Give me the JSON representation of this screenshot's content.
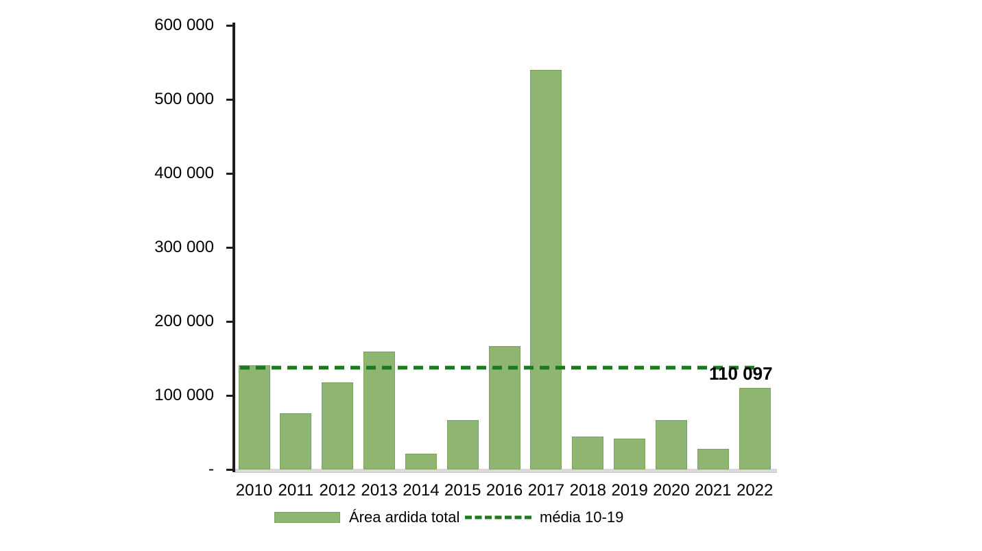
{
  "chart_data": {
    "type": "bar",
    "title": "",
    "xlabel": "",
    "ylabel": "",
    "categories": [
      "2010",
      "2011",
      "2012",
      "2013",
      "2014",
      "2015",
      "2016",
      "2017",
      "2018",
      "2019",
      "2020",
      "2021",
      "2022"
    ],
    "series": [
      {
        "name": "Área ardida total",
        "type": "bar",
        "color": "#8FB573",
        "values": [
          141000,
          76000,
          118000,
          159000,
          21000,
          67000,
          167000,
          540000,
          44000,
          42000,
          67000,
          28000,
          110097
        ]
      },
      {
        "name": "média 10-19",
        "type": "dashed-horizontal-line",
        "color": "#1E7A1E",
        "value": 137500
      }
    ],
    "ylim": [
      0,
      600000
    ],
    "y_tick_step": 100000,
    "y_tick_labels": [
      "600 000",
      "500 000",
      "400 000",
      "300 000",
      "200 000",
      "100 000",
      "-"
    ],
    "grid": false,
    "legend_position": "bottom",
    "annotations": [
      {
        "text": "110 097",
        "refers_to_category": "2022"
      }
    ]
  },
  "annotation_label": "110 097",
  "legend": {
    "bar_label": "Área ardida total",
    "line_label": "média 10-19"
  },
  "colors": {
    "bar_fill": "#8FB573",
    "bar_border": "#7BA25D",
    "mean_line": "#1E7A1E",
    "axis": "#1F1C1C",
    "baseline": "#D9D9D9"
  }
}
